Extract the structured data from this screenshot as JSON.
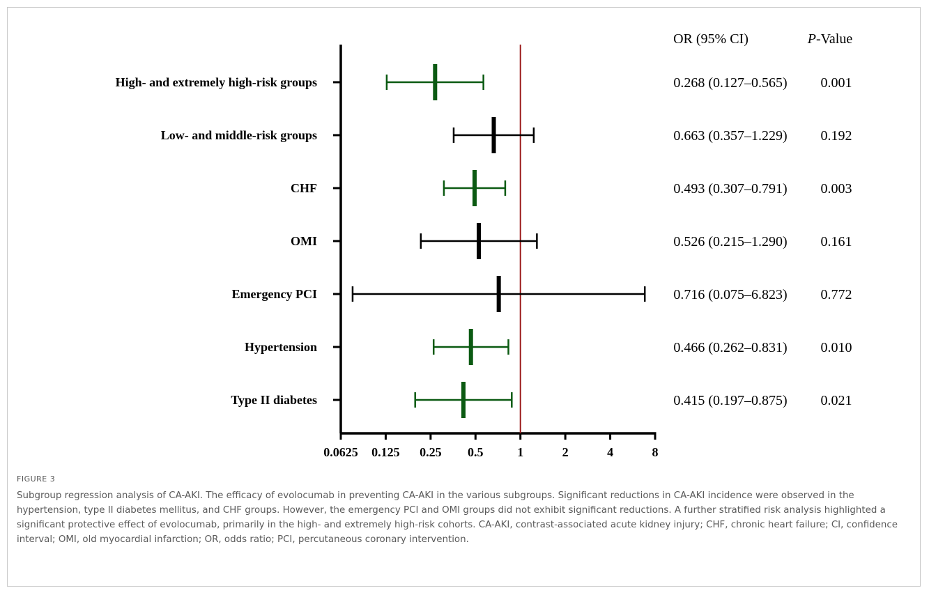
{
  "chart_data": {
    "type": "forest",
    "xscale": "log2",
    "xlim": [
      0.0625,
      8
    ],
    "xticks": [
      0.0625,
      0.125,
      0.25,
      0.5,
      1,
      2,
      4,
      8
    ],
    "xtick_labels": [
      "0.0625",
      "0.125",
      "0.25",
      "0.5",
      "1",
      "2",
      "4",
      "8"
    ],
    "reference_line": 1,
    "column_headers": {
      "or_prefix": "OR  (95%  CI)",
      "p_italic": "P",
      "p_suffix": "-Value"
    },
    "colors": {
      "significant": "#0b5a12",
      "nonsignificant": "#000000",
      "reference": "#9b1b1b",
      "axis": "#000000"
    },
    "rows": [
      {
        "label": "High- and extremely high-risk groups",
        "or": 0.268,
        "lower": 0.127,
        "upper": 0.565,
        "or_text": "0.268 (0.127–0.565)",
        "p_text": "0.001",
        "significant": true
      },
      {
        "label": "Low- and middle-risk groups",
        "or": 0.663,
        "lower": 0.357,
        "upper": 1.229,
        "or_text": "0.663 (0.357–1.229)",
        "p_text": "0.192",
        "significant": false
      },
      {
        "label": "CHF",
        "or": 0.493,
        "lower": 0.307,
        "upper": 0.791,
        "or_text": "0.493 (0.307–0.791)",
        "p_text": "0.003",
        "significant": true
      },
      {
        "label": "OMI",
        "or": 0.526,
        "lower": 0.215,
        "upper": 1.29,
        "or_text": "0.526 (0.215–1.290)",
        "p_text": "0.161",
        "significant": false
      },
      {
        "label": "Emergency PCI",
        "or": 0.716,
        "lower": 0.075,
        "upper": 6.823,
        "or_text": "0.716 (0.075–6.823)",
        "p_text": "0.772",
        "significant": false
      },
      {
        "label": "Hypertension",
        "or": 0.466,
        "lower": 0.262,
        "upper": 0.831,
        "or_text": "0.466 (0.262–0.831)",
        "p_text": "0.010",
        "significant": true
      },
      {
        "label": "Type II diabetes",
        "or": 0.415,
        "lower": 0.197,
        "upper": 0.875,
        "or_text": "0.415 (0.197–0.875)",
        "p_text": "0.021",
        "significant": true
      }
    ]
  },
  "figure": {
    "label": "FIGURE 3",
    "caption": "Subgroup regression analysis of CA-AKI. The efficacy of evolocumab in preventing CA-AKI in the various subgroups. Significant reductions in CA-AKI incidence were observed in the hypertension, type II diabetes mellitus, and CHF groups. However, the emergency PCI and OMI groups did not exhibit significant reductions. A further stratified risk analysis highlighted a significant protective effect of evolocumab, primarily in the high- and extremely high-risk cohorts. CA-AKI, contrast-associated acute kidney injury; CHF, chronic heart failure; CI, confidence interval; OMI, old myocardial infarction; OR, odds ratio; PCI, percutaneous coronary intervention."
  }
}
